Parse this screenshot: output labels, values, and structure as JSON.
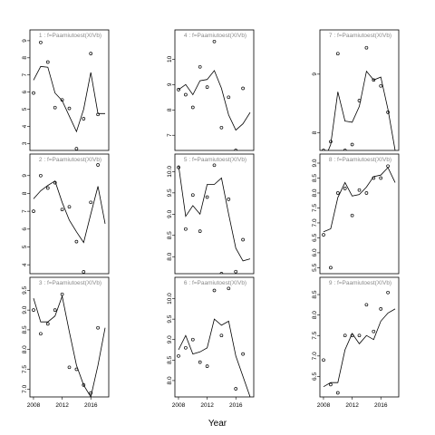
{
  "chart_data": {
    "type": "scatter",
    "xlabel": "Year",
    "x_ticks": [
      2008,
      2012,
      2016
    ],
    "xlim": [
      2007.5,
      2018.5
    ],
    "panels": [
      {
        "strip": "1 : f=Paamiutoest(XIVb)",
        "ylim": [
          2.6,
          9.1
        ],
        "y_ticks": [
          3,
          4,
          5,
          6,
          7,
          8,
          9
        ],
        "points": [
          [
            2008,
            5.95
          ],
          [
            2009,
            8.9
          ],
          [
            2010,
            7.75
          ],
          [
            2011,
            5.1
          ],
          [
            2012,
            5.55
          ],
          [
            2013,
            5.05
          ],
          [
            2014,
            2.7
          ],
          [
            2015,
            4.45
          ],
          [
            2016,
            8.25
          ],
          [
            2017,
            4.7
          ]
        ],
        "fit": [
          [
            2008,
            6.7
          ],
          [
            2009,
            7.5
          ],
          [
            2010,
            7.45
          ],
          [
            2011,
            5.95
          ],
          [
            2012,
            5.5
          ],
          [
            2013,
            4.6
          ],
          [
            2014,
            3.7
          ],
          [
            2015,
            5.0
          ],
          [
            2016,
            7.15
          ],
          [
            2017,
            4.75
          ],
          [
            2018,
            4.75
          ]
        ]
      },
      {
        "strip": "4 : f=Paamiutoest(XIVb)",
        "ylim": [
          6.4,
          10.8
        ],
        "y_ticks": [
          7,
          8,
          9,
          10
        ],
        "points": [
          [
            2008,
            8.8
          ],
          [
            2009,
            8.6
          ],
          [
            2010,
            8.1
          ],
          [
            2011,
            9.7
          ],
          [
            2012,
            8.9
          ],
          [
            2013,
            10.7
          ],
          [
            2014,
            7.3
          ],
          [
            2015,
            8.5
          ],
          [
            2016,
            6.4
          ],
          [
            2017,
            8.85
          ]
        ],
        "fit": [
          [
            2008,
            8.8
          ],
          [
            2009,
            9.0
          ],
          [
            2010,
            8.6
          ],
          [
            2011,
            9.15
          ],
          [
            2012,
            9.2
          ],
          [
            2013,
            9.55
          ],
          [
            2014,
            8.85
          ],
          [
            2015,
            7.8
          ],
          [
            2016,
            7.2
          ],
          [
            2017,
            7.45
          ],
          [
            2018,
            7.9
          ]
        ]
      },
      {
        "strip": "7 : f=Paamiutoest(XIVb)",
        "ylim": [
          7.7,
          9.6
        ],
        "y_ticks": [
          8.0,
          9.0
        ],
        "points": [
          [
            2008,
            7.7
          ],
          [
            2009,
            7.85
          ],
          [
            2010,
            9.35
          ],
          [
            2011,
            7.7
          ],
          [
            2012,
            7.8
          ],
          [
            2013,
            8.55
          ],
          [
            2014,
            9.45
          ],
          [
            2015,
            8.9
          ],
          [
            2016,
            8.8
          ],
          [
            2017,
            8.35
          ]
        ],
        "fit": [
          [
            2008,
            7.5
          ],
          [
            2009,
            7.8
          ],
          [
            2010,
            8.7
          ],
          [
            2011,
            8.2
          ],
          [
            2012,
            8.18
          ],
          [
            2013,
            8.45
          ],
          [
            2014,
            9.05
          ],
          [
            2015,
            8.9
          ],
          [
            2016,
            8.95
          ],
          [
            2017,
            8.4
          ],
          [
            2018,
            7.7
          ]
        ]
      },
      {
        "strip": "2 : f=Paamiutoest(XIVb)",
        "ylim": [
          3.5,
          9.7
        ],
        "y_ticks": [
          4,
          5,
          6,
          7,
          8,
          9
        ],
        "points": [
          [
            2008,
            7.0
          ],
          [
            2009,
            9.0
          ],
          [
            2010,
            8.3
          ],
          [
            2011,
            8.6
          ],
          [
            2012,
            7.1
          ],
          [
            2013,
            7.25
          ],
          [
            2014,
            5.3
          ],
          [
            2015,
            3.6
          ],
          [
            2016,
            7.5
          ],
          [
            2017,
            9.6
          ]
        ],
        "fit": [
          [
            2008,
            7.7
          ],
          [
            2009,
            8.15
          ],
          [
            2010,
            8.45
          ],
          [
            2011,
            8.7
          ],
          [
            2012,
            7.5
          ],
          [
            2013,
            6.5
          ],
          [
            2014,
            5.85
          ],
          [
            2015,
            5.25
          ],
          [
            2016,
            6.85
          ],
          [
            2017,
            8.4
          ],
          [
            2018,
            6.3
          ]
        ]
      },
      {
        "strip": "5 : f=Paamiutoest(XIVb)",
        "ylim": [
          7.6,
          10.2
        ],
        "y_ticks": [
          8.0,
          8.5,
          9.0,
          9.5,
          10.0
        ],
        "points": [
          [
            2008,
            10.1
          ],
          [
            2009,
            8.65
          ],
          [
            2010,
            9.45
          ],
          [
            2011,
            8.6
          ],
          [
            2012,
            9.4
          ],
          [
            2013,
            10.15
          ],
          [
            2014,
            7.6
          ],
          [
            2015,
            9.35
          ],
          [
            2016,
            7.65
          ],
          [
            2017,
            8.4
          ]
        ],
        "fit": [
          [
            2008,
            10.15
          ],
          [
            2009,
            8.95
          ],
          [
            2010,
            9.2
          ],
          [
            2011,
            9.0
          ],
          [
            2012,
            9.7
          ],
          [
            2013,
            9.7
          ],
          [
            2014,
            9.85
          ],
          [
            2015,
            9.0
          ],
          [
            2016,
            8.2
          ],
          [
            2017,
            7.9
          ],
          [
            2018,
            7.95
          ]
        ]
      },
      {
        "strip": "8 : f=Paamiutoest(XIVb)",
        "ylim": [
          5.3,
          9.0
        ],
        "y_ticks": [
          5.5,
          6.0,
          6.5,
          7.0,
          7.5,
          8.0,
          8.5,
          9.0
        ],
        "points": [
          [
            2008,
            6.6
          ],
          [
            2009,
            5.5
          ],
          [
            2010,
            8.0
          ],
          [
            2011,
            8.15
          ],
          [
            2012,
            7.25
          ],
          [
            2013,
            8.1
          ],
          [
            2014,
            8.0
          ],
          [
            2015,
            8.5
          ],
          [
            2016,
            8.5
          ],
          [
            2017,
            8.9
          ]
        ],
        "fit": [
          [
            2008,
            6.7
          ],
          [
            2009,
            6.8
          ],
          [
            2010,
            7.85
          ],
          [
            2011,
            8.35
          ],
          [
            2012,
            7.9
          ],
          [
            2013,
            7.95
          ],
          [
            2014,
            8.2
          ],
          [
            2015,
            8.55
          ],
          [
            2016,
            8.6
          ],
          [
            2017,
            8.85
          ],
          [
            2018,
            8.35
          ]
        ]
      },
      {
        "strip": "3 : f=Paamiutoest(XIVb)",
        "ylim": [
          6.8,
          9.6
        ],
        "y_ticks": [
          7.0,
          7.5,
          8.0,
          8.5,
          9.0,
          9.5
        ],
        "points": [
          [
            2008,
            9.0
          ],
          [
            2009,
            8.4
          ],
          [
            2010,
            8.65
          ],
          [
            2011,
            9.0
          ],
          [
            2012,
            9.4
          ],
          [
            2013,
            7.55
          ],
          [
            2014,
            7.5
          ],
          [
            2015,
            7.1
          ],
          [
            2016,
            6.9
          ],
          [
            2017,
            8.55
          ]
        ],
        "fit": [
          [
            2008,
            9.3
          ],
          [
            2009,
            8.7
          ],
          [
            2010,
            8.7
          ],
          [
            2011,
            8.85
          ],
          [
            2012,
            9.35
          ],
          [
            2013,
            8.45
          ],
          [
            2014,
            7.6
          ],
          [
            2015,
            7.1
          ],
          [
            2016,
            6.8
          ],
          [
            2017,
            7.6
          ],
          [
            2018,
            8.55
          ]
        ]
      },
      {
        "strip": "6 : f=Paamiutoest(XIVb)",
        "ylim": [
          7.6,
          10.3
        ],
        "y_ticks": [
          8.0,
          8.5,
          9.0,
          9.5,
          10.0
        ],
        "points": [
          [
            2008,
            8.6
          ],
          [
            2009,
            8.8
          ],
          [
            2010,
            9.0
          ],
          [
            2011,
            8.45
          ],
          [
            2012,
            8.35
          ],
          [
            2013,
            10.2
          ],
          [
            2014,
            9.1
          ],
          [
            2015,
            10.25
          ],
          [
            2016,
            7.8
          ],
          [
            2017,
            8.65
          ]
        ],
        "fit": [
          [
            2008,
            8.75
          ],
          [
            2009,
            9.1
          ],
          [
            2010,
            8.65
          ],
          [
            2011,
            8.7
          ],
          [
            2012,
            8.8
          ],
          [
            2013,
            9.5
          ],
          [
            2014,
            9.35
          ],
          [
            2015,
            9.45
          ],
          [
            2016,
            8.6
          ],
          [
            2017,
            8.1
          ],
          [
            2018,
            7.6
          ]
        ]
      },
      {
        "strip": "9 : f=Paamiutoest(XIVb)",
        "ylim": [
          6.0,
          8.7
        ],
        "y_ticks": [
          6.5,
          7.0,
          7.5,
          8.0,
          8.5
        ],
        "points": [
          [
            2008,
            6.9
          ],
          [
            2009,
            6.3
          ],
          [
            2010,
            6.1
          ],
          [
            2011,
            7.5
          ],
          [
            2012,
            7.5
          ],
          [
            2013,
            7.5
          ],
          [
            2014,
            8.25
          ],
          [
            2015,
            7.6
          ],
          [
            2016,
            8.15
          ],
          [
            2017,
            8.55
          ]
        ],
        "fit": [
          [
            2008,
            6.25
          ],
          [
            2009,
            6.35
          ],
          [
            2010,
            6.35
          ],
          [
            2011,
            7.15
          ],
          [
            2012,
            7.55
          ],
          [
            2013,
            7.3
          ],
          [
            2014,
            7.5
          ],
          [
            2015,
            7.4
          ],
          [
            2016,
            7.85
          ],
          [
            2017,
            8.05
          ],
          [
            2018,
            8.15
          ]
        ]
      }
    ]
  }
}
